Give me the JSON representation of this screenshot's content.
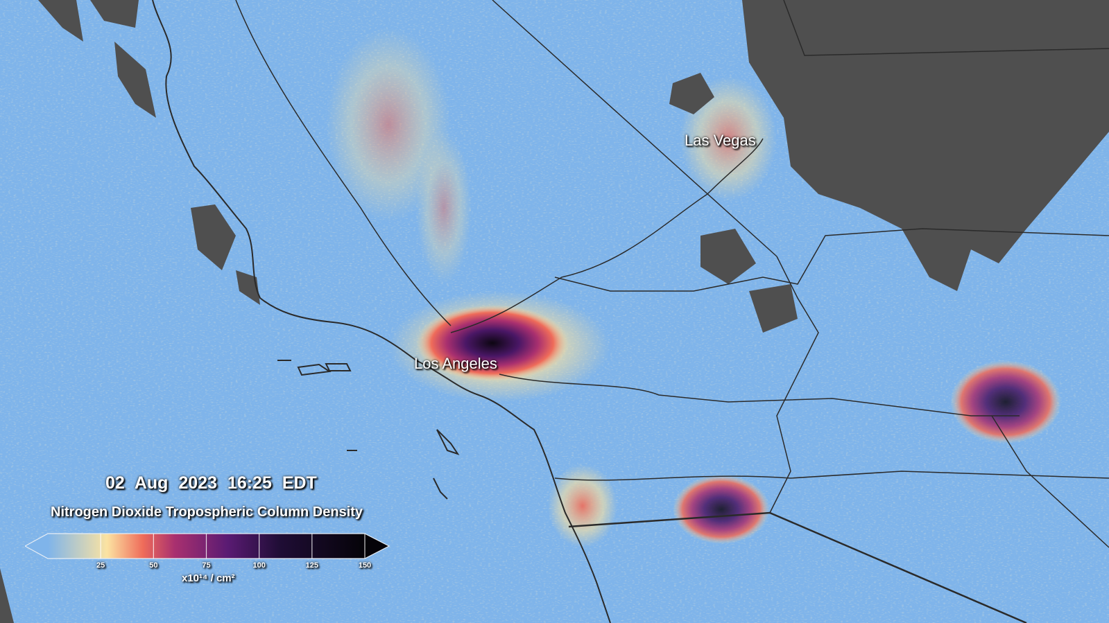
{
  "map": {
    "cities": [
      {
        "name": "Las Vegas"
      },
      {
        "name": "Los Angeles"
      }
    ],
    "colors": {
      "background_low": "#7fb4ea",
      "cloud": "#4f4f4f",
      "roads": "#2a2a2a"
    }
  },
  "overlay": {
    "datetime": "02  Aug  2023   16:25 EDT",
    "title": "Nitrogen Dioxide Tropospheric Column Density",
    "units": "x10¹⁴ / cm²"
  },
  "colorbar": {
    "min": 0,
    "max": 150,
    "ticks": [
      "25",
      "50",
      "75",
      "100",
      "125",
      "150"
    ],
    "extend": "both",
    "stops": [
      {
        "value": 0,
        "color": "#7fb4ea"
      },
      {
        "value": 28,
        "color": "#fbe3a2"
      },
      {
        "value": 45,
        "color": "#ef6c5a"
      },
      {
        "value": 60,
        "color": "#a9306f"
      },
      {
        "value": 85,
        "color": "#5a1b73"
      },
      {
        "value": 110,
        "color": "#1f0d35"
      },
      {
        "value": 150,
        "color": "#050308"
      }
    ]
  }
}
